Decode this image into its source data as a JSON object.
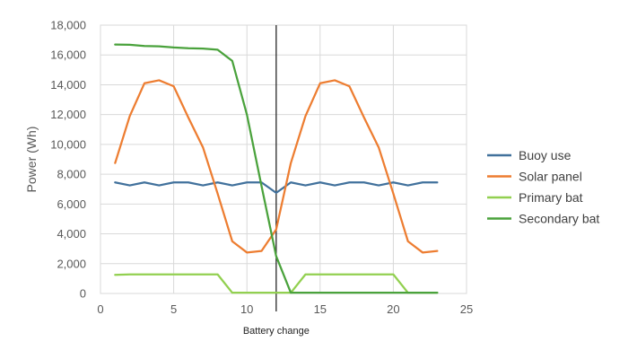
{
  "chart_data": {
    "type": "line",
    "title": "",
    "xlabel": "",
    "ylabel": "Power (Wh)",
    "xlim": [
      0,
      25
    ],
    "ylim": [
      0,
      18000
    ],
    "xticks": [
      0,
      5,
      10,
      15,
      20,
      25
    ],
    "yticks": [
      0,
      2000,
      4000,
      6000,
      8000,
      10000,
      12000,
      14000,
      16000,
      18000
    ],
    "ytick_labels": [
      "0",
      "2,000",
      "4,000",
      "6,000",
      "8,000",
      "10,000",
      "12,000",
      "14,000",
      "16,000",
      "18,000"
    ],
    "grid": "horizontal and vertical",
    "legend_position": "right",
    "x": [
      1,
      2,
      3,
      4,
      5,
      6,
      7,
      8,
      9,
      10,
      11,
      12,
      13,
      14,
      15,
      16,
      17,
      18,
      19,
      20,
      21,
      22,
      23
    ],
    "series": [
      {
        "name": "Buoy use",
        "color": "#41719c",
        "values": [
          7450,
          7250,
          7450,
          7250,
          7450,
          7450,
          7250,
          7450,
          7250,
          7450,
          7450,
          6750,
          7450,
          7250,
          7450,
          7250,
          7450,
          7450,
          7250,
          7450,
          7250,
          7450,
          7450
        ]
      },
      {
        "name": "Solar panel",
        "color": "#ed7d31",
        "values": [
          8750,
          11900,
          14100,
          14300,
          13900,
          11800,
          9800,
          6700,
          3500,
          2750,
          2850,
          4300,
          8750,
          11900,
          14100,
          14300,
          13900,
          11800,
          9800,
          6700,
          3500,
          2750,
          2850
        ]
      },
      {
        "name": "Primary bat",
        "color": "#92d050",
        "values": [
          1250,
          1280,
          1280,
          1280,
          1280,
          1280,
          1280,
          1280,
          50,
          50,
          50,
          50,
          50,
          1280,
          1280,
          1280,
          1280,
          1280,
          1280,
          1280,
          50,
          50,
          50
        ]
      },
      {
        "name": "Secondary bat",
        "color": "#4aa23c",
        "values": [
          16700,
          16680,
          16600,
          16580,
          16500,
          16450,
          16430,
          16350,
          15600,
          12000,
          7200,
          2500,
          50,
          50,
          50,
          50,
          50,
          50,
          50,
          50,
          50,
          50,
          50
        ]
      }
    ],
    "annotations": [
      {
        "type": "vline",
        "x": 12,
        "label": "Battery change"
      }
    ]
  }
}
